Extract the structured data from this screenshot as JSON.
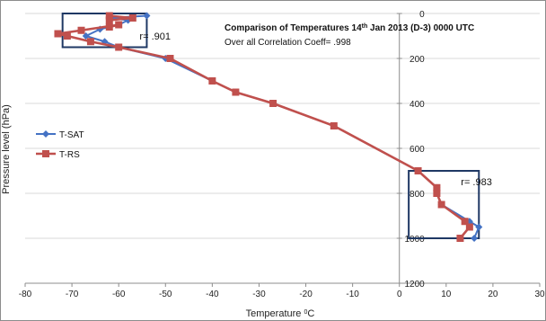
{
  "chart_data": {
    "type": "line",
    "title": "Comparison of Temperatures  14th Jan 2013 (D-3) 0000 UTC",
    "title_main": "Comparison of Temperatures  14",
    "title_sup": "th",
    "title_rest": " Jan 2013 (D-3) 0000 UTC",
    "subtitle": "Over all Correlation Coeff= .998",
    "xlabel": "Temperature °C",
    "xlabel_main": "Temperature ",
    "xlabel_sup": "0",
    "xlabel_unit": "C",
    "ylabel": "Pressure level (hPa)",
    "xlim": [
      -80,
      30
    ],
    "ylim": [
      0,
      1200
    ],
    "y_inverted": true,
    "x_ticks": [
      -80,
      -70,
      -60,
      -50,
      -40,
      -30,
      -20,
      -10,
      0,
      10,
      20,
      30
    ],
    "y_ticks": [
      0,
      200,
      400,
      600,
      800,
      1000,
      1200
    ],
    "legend_position": "left",
    "series": [
      {
        "name": "T-SAT",
        "color": "#4472C4",
        "marker": "diamond",
        "points": [
          [
            16,
            1000
          ],
          [
            17,
            950
          ],
          [
            15,
            925
          ],
          [
            9,
            850
          ],
          [
            8,
            800
          ],
          [
            8,
            775
          ],
          [
            4,
            700
          ],
          [
            -14,
            500
          ],
          [
            -27,
            400
          ],
          [
            -35,
            350
          ],
          [
            -40,
            300
          ],
          [
            -50,
            200
          ],
          [
            -60,
            150
          ],
          [
            -63,
            125
          ],
          [
            -67,
            100
          ],
          [
            -64,
            70
          ],
          [
            -60,
            50
          ],
          [
            -58,
            30
          ],
          [
            -62,
            20
          ],
          [
            -54,
            10
          ]
        ]
      },
      {
        "name": "T-RS",
        "color": "#C0504D",
        "marker": "square",
        "points": [
          [
            13,
            1000
          ],
          [
            15,
            950
          ],
          [
            14,
            925
          ],
          [
            9,
            850
          ],
          [
            8,
            800
          ],
          [
            8,
            775
          ],
          [
            4,
            700
          ],
          [
            -14,
            500
          ],
          [
            -27,
            400
          ],
          [
            -35,
            350
          ],
          [
            -40,
            300
          ],
          [
            -49,
            200
          ],
          [
            -60,
            150
          ],
          [
            -66,
            125
          ],
          [
            -71,
            100
          ],
          [
            -73,
            90
          ],
          [
            -68,
            75
          ],
          [
            -60,
            50
          ],
          [
            -62,
            60
          ],
          [
            -62,
            30
          ],
          [
            -57,
            20
          ],
          [
            -62,
            10
          ]
        ]
      }
    ],
    "annotations": [
      {
        "label": "r= .901",
        "x_range": [
          -72,
          -54
        ],
        "p_range": [
          0,
          150
        ]
      },
      {
        "label": "r= .983",
        "x_range": [
          2,
          17
        ],
        "p_range": [
          700,
          1000
        ]
      }
    ]
  }
}
